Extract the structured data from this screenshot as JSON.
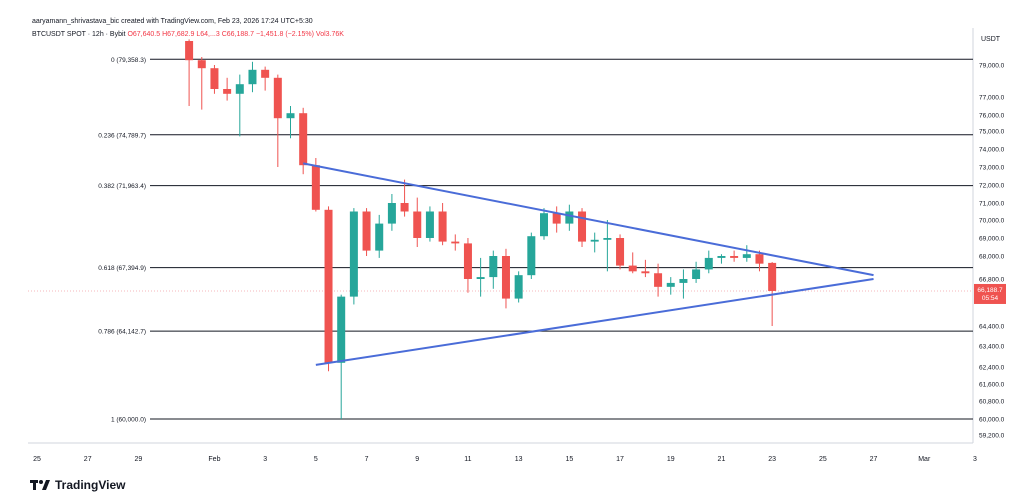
{
  "header": {
    "creator": "aaryamann_shrivastava_bic created with TradingView.com, Feb 23, 2026 17:24 UTC+5:30",
    "symbol": "BTCUSDT SPOT · 12h · Bybit",
    "open": "O67,640.5",
    "high": "H67,682.9",
    "low": "L64,...3",
    "close": "C66,188.7",
    "change": "−1,451.8 (−2.15%)",
    "volume": "Vol3.76K"
  },
  "logo": {
    "text": "TradingView",
    "icon": "tradingview-logo-icon"
  },
  "colors": {
    "up": "#26a69a",
    "down": "#ef5350",
    "trend": "#4a6cd8",
    "level": "#131722"
  },
  "chart_data": {
    "type": "candlestick",
    "currency_label": "USDT",
    "y_axis_ticks": [
      "79,000.0",
      "77,000.0",
      "76,000.0",
      "75,000.0",
      "74,000.0",
      "73,000.0",
      "72,000.0",
      "71,000.0",
      "70,000.0",
      "69,000.0",
      "68,000.0",
      "66,800.0",
      "64,400.0",
      "63,400.0",
      "62,400.0",
      "61,600.0",
      "60,800.0",
      "60,000.0",
      "59,200.0"
    ],
    "x_axis_ticks": [
      "25",
      "27",
      "29",
      "Feb",
      "3",
      "5",
      "7",
      "9",
      "11",
      "13",
      "15",
      "17",
      "19",
      "21",
      "23",
      "25",
      "27",
      "Mar",
      "3"
    ],
    "last_price": {
      "value": "66,188.7",
      "countdown": "05:54"
    },
    "fib_levels": [
      {
        "ratio": "0",
        "label": "0 (79,358.3)",
        "price": 79358.3
      },
      {
        "ratio": "0.236",
        "label": "0.236 (74,789.7)",
        "price": 74789.7
      },
      {
        "ratio": "0.382",
        "label": "0.382 (71,963.4)",
        "price": 71963.4
      },
      {
        "ratio": "0.618",
        "label": "0.618 (67,394.9)",
        "price": 67394.9
      },
      {
        "ratio": "0.786",
        "label": "0.786 (64,142.7)",
        "price": 64142.7
      },
      {
        "ratio": "1",
        "label": "1 (60,000.0)",
        "price": 60000.0
      }
    ],
    "trendlines": [
      {
        "name": "upper",
        "from": [
          "Feb 4 12:00",
          73200
        ],
        "to": [
          "Feb 27",
          67000
        ]
      },
      {
        "name": "lower",
        "from": [
          "Feb 5",
          62500
        ],
        "to": [
          "Feb 27",
          66800
        ]
      }
    ],
    "candles": [
      {
        "t": "Jan 31 00:00",
        "o": 80500,
        "h": 80600,
        "l": 76500,
        "c": 79300
      },
      {
        "t": "Jan 31 12:00",
        "o": 79300,
        "h": 79500,
        "l": 76300,
        "c": 78800
      },
      {
        "t": "Feb 1 00:00",
        "o": 78800,
        "h": 79000,
        "l": 77200,
        "c": 77500
      },
      {
        "t": "Feb 1 12:00",
        "o": 77500,
        "h": 78200,
        "l": 76800,
        "c": 77200
      },
      {
        "t": "Feb 2 00:00",
        "o": 77200,
        "h": 78400,
        "l": 74700,
        "c": 77800
      },
      {
        "t": "Feb 2 12:00",
        "o": 77800,
        "h": 79200,
        "l": 77300,
        "c": 78700
      },
      {
        "t": "Feb 3 00:00",
        "o": 78700,
        "h": 78900,
        "l": 77400,
        "c": 78200
      },
      {
        "t": "Feb 3 12:00",
        "o": 78200,
        "h": 78400,
        "l": 73000,
        "c": 75800
      },
      {
        "t": "Feb 4 00:00",
        "o": 75800,
        "h": 76500,
        "l": 74600,
        "c": 76100
      },
      {
        "t": "Feb 4 12:00",
        "o": 76100,
        "h": 76400,
        "l": 72600,
        "c": 73100
      },
      {
        "t": "Feb 5 00:00",
        "o": 73100,
        "h": 73500,
        "l": 70500,
        "c": 70600
      },
      {
        "t": "Feb 5 12:00",
        "o": 70600,
        "h": 70800,
        "l": 62200,
        "c": 62600
      },
      {
        "t": "Feb 6 00:00",
        "o": 62600,
        "h": 66000,
        "l": 60000,
        "c": 65900
      },
      {
        "t": "Feb 6 12:00",
        "o": 65900,
        "h": 70700,
        "l": 65500,
        "c": 70500
      },
      {
        "t": "Feb 7 00:00",
        "o": 70500,
        "h": 70700,
        "l": 68000,
        "c": 68300
      },
      {
        "t": "Feb 7 12:00",
        "o": 68300,
        "h": 70300,
        "l": 67900,
        "c": 69800
      },
      {
        "t": "Feb 8 00:00",
        "o": 69800,
        "h": 71500,
        "l": 69400,
        "c": 71000
      },
      {
        "t": "Feb 8 12:00",
        "o": 71000,
        "h": 72300,
        "l": 70200,
        "c": 70500
      },
      {
        "t": "Feb 9 00:00",
        "o": 70500,
        "h": 71300,
        "l": 68500,
        "c": 69000
      },
      {
        "t": "Feb 9 12:00",
        "o": 69000,
        "h": 70800,
        "l": 68800,
        "c": 70500
      },
      {
        "t": "Feb 10 00:00",
        "o": 70500,
        "h": 71000,
        "l": 68600,
        "c": 68800
      },
      {
        "t": "Feb 10 12:00",
        "o": 68800,
        "h": 69200,
        "l": 68300,
        "c": 68700
      },
      {
        "t": "Feb 11 00:00",
        "o": 68700,
        "h": 69000,
        "l": 66100,
        "c": 66800
      },
      {
        "t": "Feb 11 12:00",
        "o": 66800,
        "h": 67900,
        "l": 65900,
        "c": 66900
      },
      {
        "t": "Feb 12 00:00",
        "o": 66900,
        "h": 68300,
        "l": 66300,
        "c": 68000
      },
      {
        "t": "Feb 12 12:00",
        "o": 68000,
        "h": 68400,
        "l": 65300,
        "c": 65800
      },
      {
        "t": "Feb 13 00:00",
        "o": 65800,
        "h": 67200,
        "l": 65600,
        "c": 67000
      },
      {
        "t": "Feb 13 12:00",
        "o": 67000,
        "h": 69300,
        "l": 66800,
        "c": 69100
      },
      {
        "t": "Feb 14 00:00",
        "o": 69100,
        "h": 70700,
        "l": 68900,
        "c": 70400
      },
      {
        "t": "Feb 14 12:00",
        "o": 70400,
        "h": 70800,
        "l": 69300,
        "c": 69800
      },
      {
        "t": "Feb 15 00:00",
        "o": 69800,
        "h": 70900,
        "l": 69400,
        "c": 70500
      },
      {
        "t": "Feb 15 12:00",
        "o": 70500,
        "h": 70700,
        "l": 68500,
        "c": 68800
      },
      {
        "t": "Feb 16 00:00",
        "o": 68800,
        "h": 69300,
        "l": 68200,
        "c": 68900
      },
      {
        "t": "Feb 16 12:00",
        "o": 68900,
        "h": 70000,
        "l": 67200,
        "c": 69000
      },
      {
        "t": "Feb 17 00:00",
        "o": 69000,
        "h": 69200,
        "l": 67300,
        "c": 67500
      },
      {
        "t": "Feb 17 12:00",
        "o": 67500,
        "h": 68200,
        "l": 67100,
        "c": 67200
      },
      {
        "t": "Feb 18 00:00",
        "o": 67200,
        "h": 67800,
        "l": 66900,
        "c": 67100
      },
      {
        "t": "Feb 18 12:00",
        "o": 67100,
        "h": 67600,
        "l": 65900,
        "c": 66400
      },
      {
        "t": "Feb 19 00:00",
        "o": 66400,
        "h": 66900,
        "l": 66000,
        "c": 66600
      },
      {
        "t": "Feb 19 12:00",
        "o": 66600,
        "h": 67300,
        "l": 65800,
        "c": 66800
      },
      {
        "t": "Feb 20 00:00",
        "o": 66800,
        "h": 67700,
        "l": 66600,
        "c": 67300
      },
      {
        "t": "Feb 20 12:00",
        "o": 67300,
        "h": 68300,
        "l": 67100,
        "c": 67900
      },
      {
        "t": "Feb 21 00:00",
        "o": 67900,
        "h": 68100,
        "l": 67600,
        "c": 68000
      },
      {
        "t": "Feb 21 12:00",
        "o": 68000,
        "h": 68300,
        "l": 67700,
        "c": 67900
      },
      {
        "t": "Feb 22 00:00",
        "o": 67900,
        "h": 68600,
        "l": 67700,
        "c": 68100
      },
      {
        "t": "Feb 22 12:00",
        "o": 68100,
        "h": 68300,
        "l": 67200,
        "c": 67600
      },
      {
        "t": "Feb 23 00:00",
        "o": 67640.5,
        "h": 67682.9,
        "l": 64400,
        "c": 66188.7
      }
    ]
  }
}
